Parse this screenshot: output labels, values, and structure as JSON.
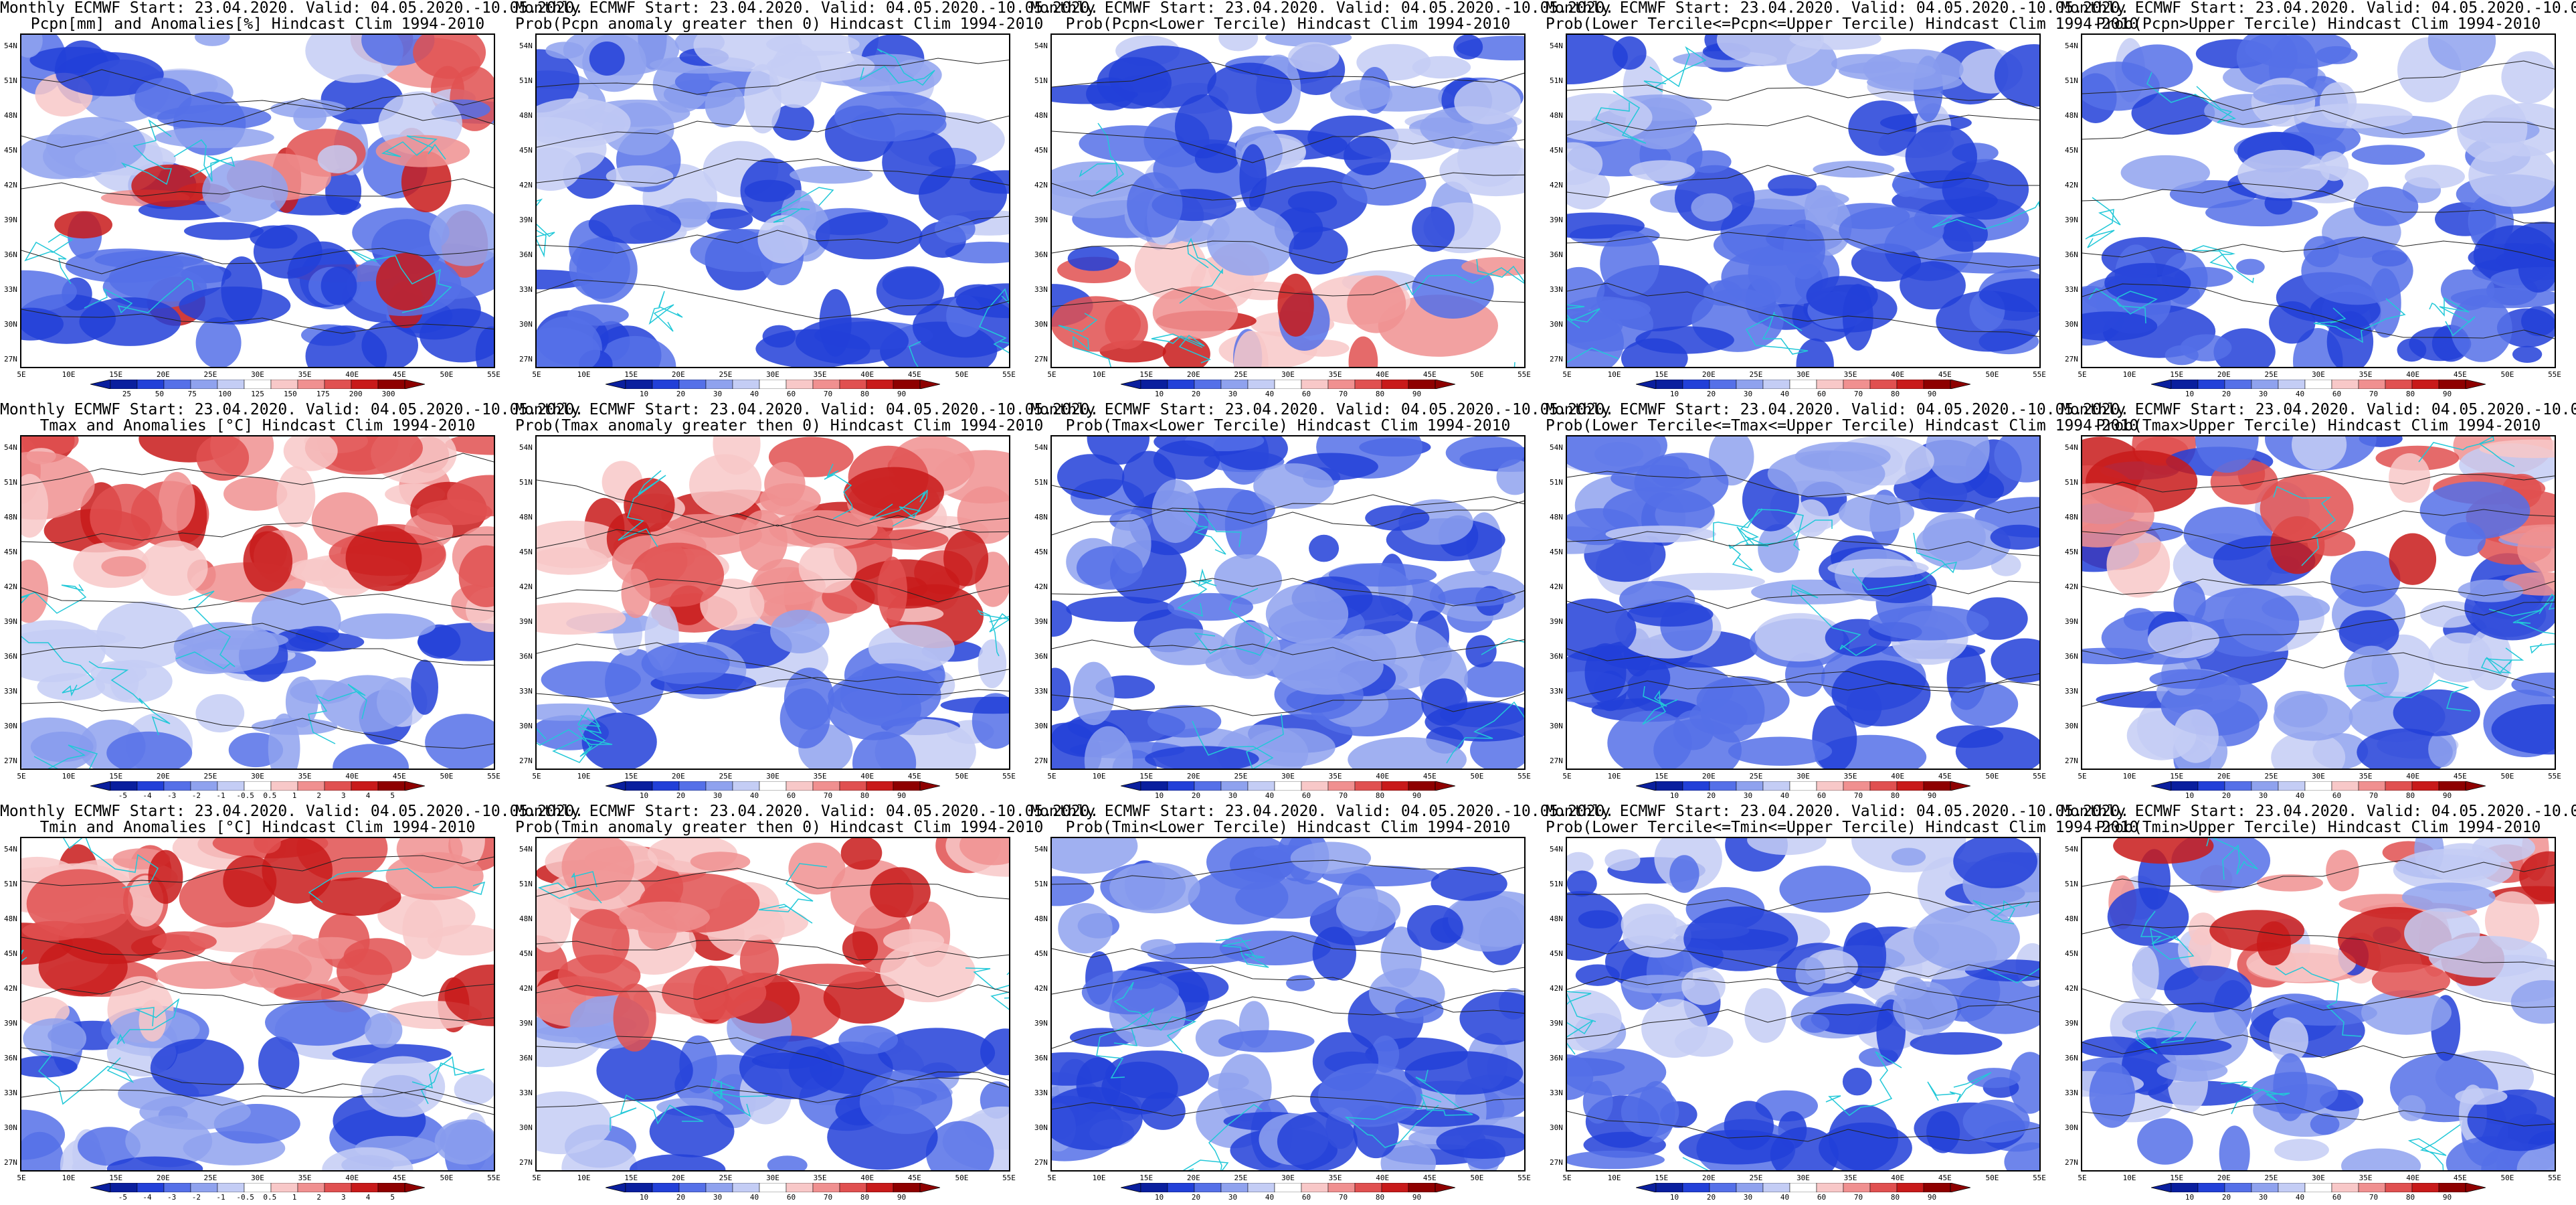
{
  "header_line": "Monthly ECMWF Start: 23.04.2020. Valid: 04.05.2020.-10.05.2020.",
  "lat_labels": [
    "54N",
    "51N",
    "48N",
    "45N",
    "42N",
    "39N",
    "36N",
    "33N",
    "30N",
    "27N"
  ],
  "lon_labels": [
    "5E",
    "10E",
    "15E",
    "20E",
    "25E",
    "30E",
    "35E",
    "40E",
    "45E",
    "50E",
    "55E"
  ],
  "legend_colors": {
    "anomaly": [
      "#0a1f9e",
      "#2240d8",
      "#5570e8",
      "#8fa2ee",
      "#c4cdf5",
      "#ffffff",
      "#f8c8c8",
      "#f09090",
      "#e05050",
      "#c81a1a",
      "#8e0000"
    ],
    "probability": [
      "#0a1f9e",
      "#2240d8",
      "#5570e8",
      "#8fa2ee",
      "#c4cdf5",
      "#ffffff",
      "#f8c8c8",
      "#f09090",
      "#e05050",
      "#c81a1a",
      "#8e0000"
    ]
  },
  "panels": [
    {
      "row": 0,
      "col": 0,
      "title": "Pcpn[mm] and Anomalies[%] Hindcast Clim 1994-2010",
      "legend": "anomaly",
      "ticks": [
        "25",
        "50",
        "75",
        "100",
        "125",
        "150",
        "175",
        "200",
        "300"
      ],
      "tint": "mixed",
      "map_label": "Map: precipitation anomaly"
    },
    {
      "row": 0,
      "col": 1,
      "title": "Prob(Pcpn anomaly greater then 0) Hindcast Clim 1994-2010",
      "legend": "probability",
      "ticks": [
        "10",
        "20",
        "30",
        "40",
        "60",
        "70",
        "80",
        "90"
      ],
      "tint": "blue",
      "map_label": "Map: probability of positive precipitation anomaly"
    },
    {
      "row": 0,
      "col": 2,
      "title": "Prob(Pcpn<Lower Tercile) Hindcast Clim 1994-2010",
      "legend": "probability",
      "ticks": [
        "10",
        "20",
        "30",
        "40",
        "60",
        "70",
        "80",
        "90"
      ],
      "tint": "blue-red-south",
      "map_label": "Map: probability precipitation below lower tercile"
    },
    {
      "row": 0,
      "col": 3,
      "title": "Prob(Lower Tercile<=Pcpn<=Upper Tercile) Hindcast Clim 1994-2010",
      "legend": "probability",
      "ticks": [
        "10",
        "20",
        "30",
        "40",
        "60",
        "70",
        "80",
        "90"
      ],
      "tint": "blue",
      "map_label": "Map: probability precipitation in middle tercile"
    },
    {
      "row": 0,
      "col": 4,
      "title": "Prob(Pcpn>Upper Tercile) Hindcast Clim 1994-2010",
      "legend": "probability",
      "ticks": [
        "10",
        "20",
        "30",
        "40",
        "60",
        "70",
        "80",
        "90"
      ],
      "tint": "blue",
      "map_label": "Map: probability precipitation above upper tercile"
    },
    {
      "row": 1,
      "col": 0,
      "title": "Tmax and Anomalies [°C] Hindcast Clim 1994-2010",
      "legend": "anomaly",
      "ticks": [
        "-5",
        "-4",
        "-3",
        "-2",
        "-1",
        "-0.5",
        "0.5",
        "1",
        "2",
        "3",
        "4",
        "5"
      ],
      "tint": "red-north",
      "map_label": "Map: maximum temperature anomaly"
    },
    {
      "row": 1,
      "col": 1,
      "title": "Prob(Tmax anomaly greater then 0) Hindcast Clim 1994-2010",
      "legend": "probability",
      "ticks": [
        "10",
        "20",
        "30",
        "40",
        "60",
        "70",
        "80",
        "90"
      ],
      "tint": "red-north",
      "map_label": "Map: probability of positive Tmax anomaly"
    },
    {
      "row": 1,
      "col": 2,
      "title": "Prob(Tmax<Lower Tercile) Hindcast Clim 1994-2010",
      "legend": "probability",
      "ticks": [
        "10",
        "20",
        "30",
        "40",
        "60",
        "70",
        "80",
        "90"
      ],
      "tint": "deepblue",
      "map_label": "Map: probability Tmax below lower tercile"
    },
    {
      "row": 1,
      "col": 3,
      "title": "Prob(Lower Tercile<=Tmax<=Upper Tercile) Hindcast Clim 1994-2010",
      "legend": "probability",
      "ticks": [
        "10",
        "20",
        "30",
        "40",
        "60",
        "70",
        "80",
        "90"
      ],
      "tint": "blue",
      "map_label": "Map: probability Tmax in middle tercile"
    },
    {
      "row": 1,
      "col": 4,
      "title": "Prob(Tmax>Upper Tercile) Hindcast Clim 1994-2010",
      "legend": "probability",
      "ticks": [
        "10",
        "20",
        "30",
        "40",
        "60",
        "70",
        "80",
        "90"
      ],
      "tint": "blue-south",
      "map_label": "Map: probability Tmax above upper tercile"
    },
    {
      "row": 2,
      "col": 0,
      "title": "Tmin and Anomalies [°C] Hindcast Clim 1994-2010",
      "legend": "anomaly",
      "ticks": [
        "-5",
        "-4",
        "-3",
        "-2",
        "-1",
        "-0.5",
        "0.5",
        "1",
        "2",
        "3",
        "4",
        "5"
      ],
      "tint": "red-north",
      "map_label": "Map: minimum temperature anomaly"
    },
    {
      "row": 2,
      "col": 1,
      "title": "Prob(Tmin anomaly greater then 0) Hindcast Clim 1994-2010",
      "legend": "probability",
      "ticks": [
        "10",
        "20",
        "30",
        "40",
        "60",
        "70",
        "80",
        "90"
      ],
      "tint": "red-north",
      "map_label": "Map: probability of positive Tmin anomaly"
    },
    {
      "row": 2,
      "col": 2,
      "title": "Prob(Tmin<Lower Tercile) Hindcast Clim 1994-2010",
      "legend": "probability",
      "ticks": [
        "10",
        "20",
        "30",
        "40",
        "60",
        "70",
        "80",
        "90"
      ],
      "tint": "deepblue",
      "map_label": "Map: probability Tmin below lower tercile"
    },
    {
      "row": 2,
      "col": 3,
      "title": "Prob(Lower Tercile<=Tmin<=Upper Tercile) Hindcast Clim 1994-2010",
      "legend": "probability",
      "ticks": [
        "10",
        "20",
        "30",
        "40",
        "60",
        "70",
        "80",
        "90"
      ],
      "tint": "blue",
      "map_label": "Map: probability Tmin in middle tercile"
    },
    {
      "row": 2,
      "col": 4,
      "title": "Prob(Tmin>Upper Tercile) Hindcast Clim 1994-2010",
      "legend": "probability",
      "ticks": [
        "10",
        "20",
        "30",
        "40",
        "60",
        "70",
        "80",
        "90"
      ],
      "tint": "blue-south",
      "map_label": "Map: probability Tmin above upper tercile"
    }
  ]
}
